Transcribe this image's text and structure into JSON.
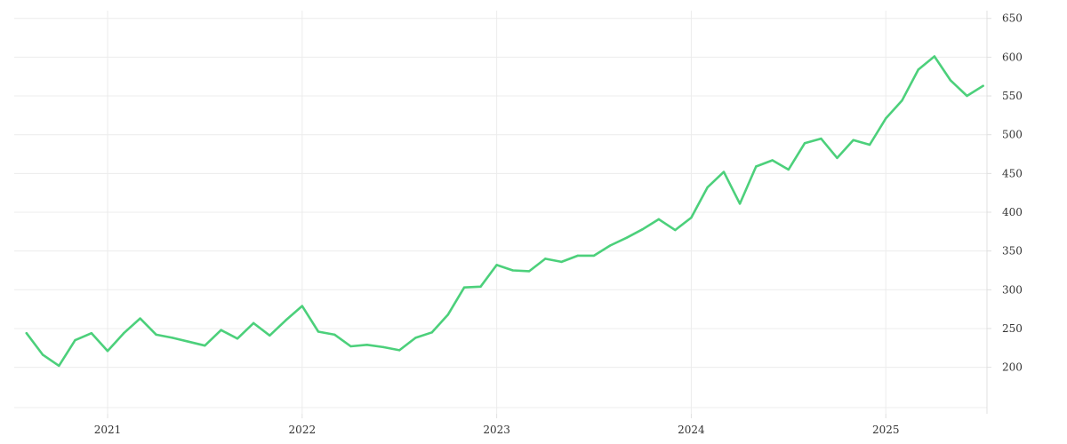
{
  "chart_data": {
    "type": "line",
    "title": "",
    "xlabel": "",
    "ylabel": "",
    "grid": true,
    "y_axis_position": "right",
    "x_ticks": [
      {
        "label": "2021",
        "value": 2021.0
      },
      {
        "label": "2022",
        "value": 2022.0
      },
      {
        "label": "2023",
        "value": 2023.0
      },
      {
        "label": "2024",
        "value": 2024.0
      },
      {
        "label": "2025",
        "value": 2025.0
      }
    ],
    "y_ticks": [
      200,
      250,
      300,
      350,
      400,
      450,
      500,
      550,
      600,
      650
    ],
    "xlim": [
      2020.52,
      2025.52
    ],
    "ylim": [
      140,
      660
    ],
    "series": [
      {
        "color": "#4cd07b",
        "x": [
          2020.583,
          2020.667,
          2020.75,
          2020.833,
          2020.917,
          2021.0,
          2021.083,
          2021.167,
          2021.25,
          2021.333,
          2021.417,
          2021.5,
          2021.583,
          2021.667,
          2021.75,
          2021.833,
          2021.917,
          2022.0,
          2022.083,
          2022.167,
          2022.25,
          2022.333,
          2022.417,
          2022.5,
          2022.583,
          2022.667,
          2022.75,
          2022.833,
          2022.917,
          2023.0,
          2023.083,
          2023.167,
          2023.25,
          2023.333,
          2023.417,
          2023.5,
          2023.583,
          2023.667,
          2023.75,
          2023.833,
          2023.917,
          2024.0,
          2024.083,
          2024.167,
          2024.25,
          2024.333,
          2024.417,
          2024.5,
          2024.583,
          2024.667,
          2024.75,
          2024.833,
          2024.917,
          2025.0,
          2025.083,
          2025.167,
          2025.25,
          2025.333,
          2025.417,
          2025.5
        ],
        "values": [
          244,
          216,
          202,
          235,
          244,
          221,
          244,
          263,
          242,
          238,
          233,
          228,
          248,
          237,
          257,
          241,
          261,
          279,
          246,
          242,
          227,
          229,
          226,
          222,
          238,
          245,
          268,
          303,
          304,
          332,
          325,
          324,
          340,
          336,
          344,
          344,
          357,
          367,
          378,
          391,
          377,
          393,
          432,
          452,
          411,
          459,
          467,
          455,
          489,
          495,
          470,
          493,
          487,
          521,
          544,
          584,
          601,
          570,
          550,
          563
        ]
      }
    ]
  }
}
